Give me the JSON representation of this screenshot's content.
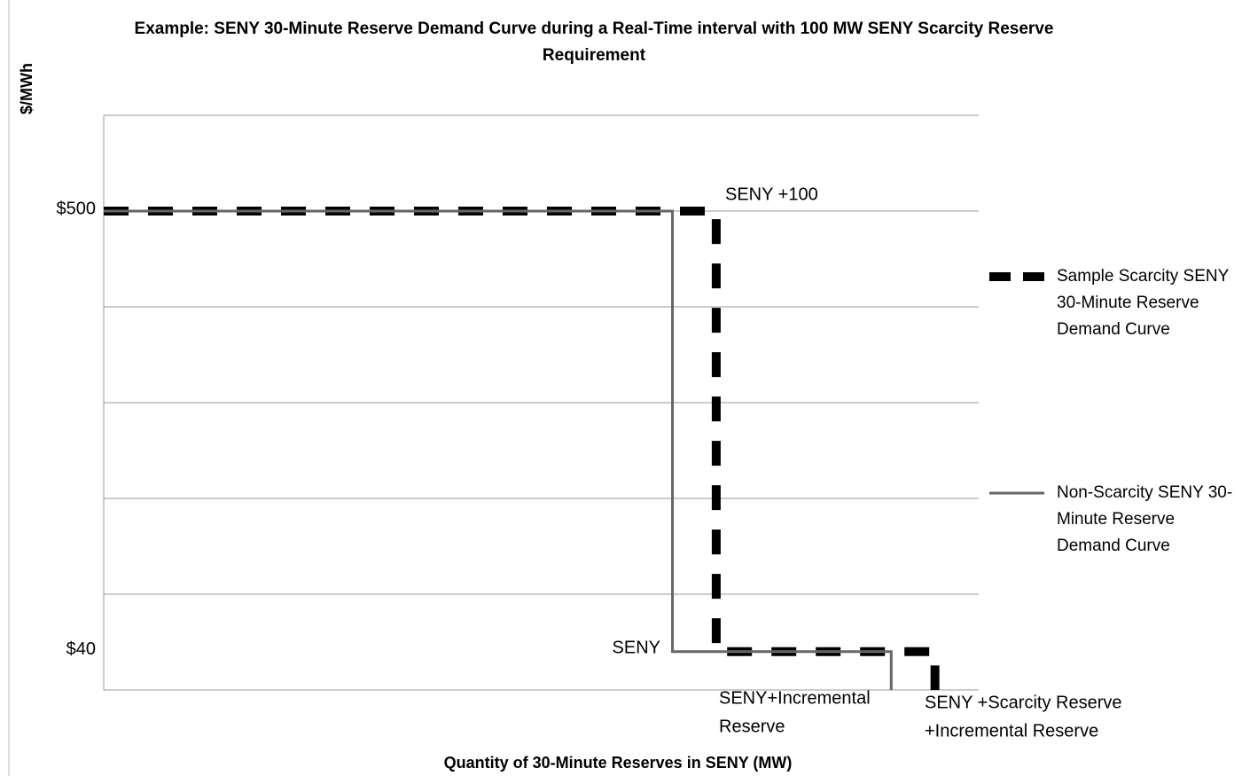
{
  "chart_data": {
    "type": "step-line",
    "title": "Example: SENY 30-Minute Reserve Demand Curve during a Real-Time interval with 100 MW SENY Scarcity Reserve Requirement",
    "y_label": "$/MWh",
    "x_label": "Quantity of 30-Minute Reserves in SENY (MW)",
    "xlim": [
      0,
      100
    ],
    "ylim": [
      0,
      600
    ],
    "yticks": [
      {
        "value": 500,
        "label": "$500"
      },
      {
        "value": 40,
        "label": "$40"
      }
    ],
    "ygrid": [
      0,
      100,
      200,
      300,
      400,
      500,
      600
    ],
    "series": [
      {
        "name": "Sample Scarcity SENY 30-Minute Reserve Demand Curve",
        "color": "#000000",
        "dashed": true,
        "x": [
          0,
          70,
          70,
          95,
          95
        ],
        "values": [
          500,
          500,
          40,
          40,
          0
        ]
      },
      {
        "name": "Non-Scarcity SENY 30-Minute Reserve Demand Curve",
        "color": "#666666",
        "dashed": false,
        "x": [
          0,
          65,
          65,
          90,
          90
        ],
        "values": [
          500,
          500,
          40,
          40,
          0
        ]
      }
    ],
    "annotations": [
      [
        "SENY +100"
      ],
      [
        "SENY"
      ],
      [
        "SENY+Incremental",
        "Reserve"
      ],
      [
        "SENY +Scarcity Reserve",
        "+Incremental Reserve"
      ]
    ]
  }
}
